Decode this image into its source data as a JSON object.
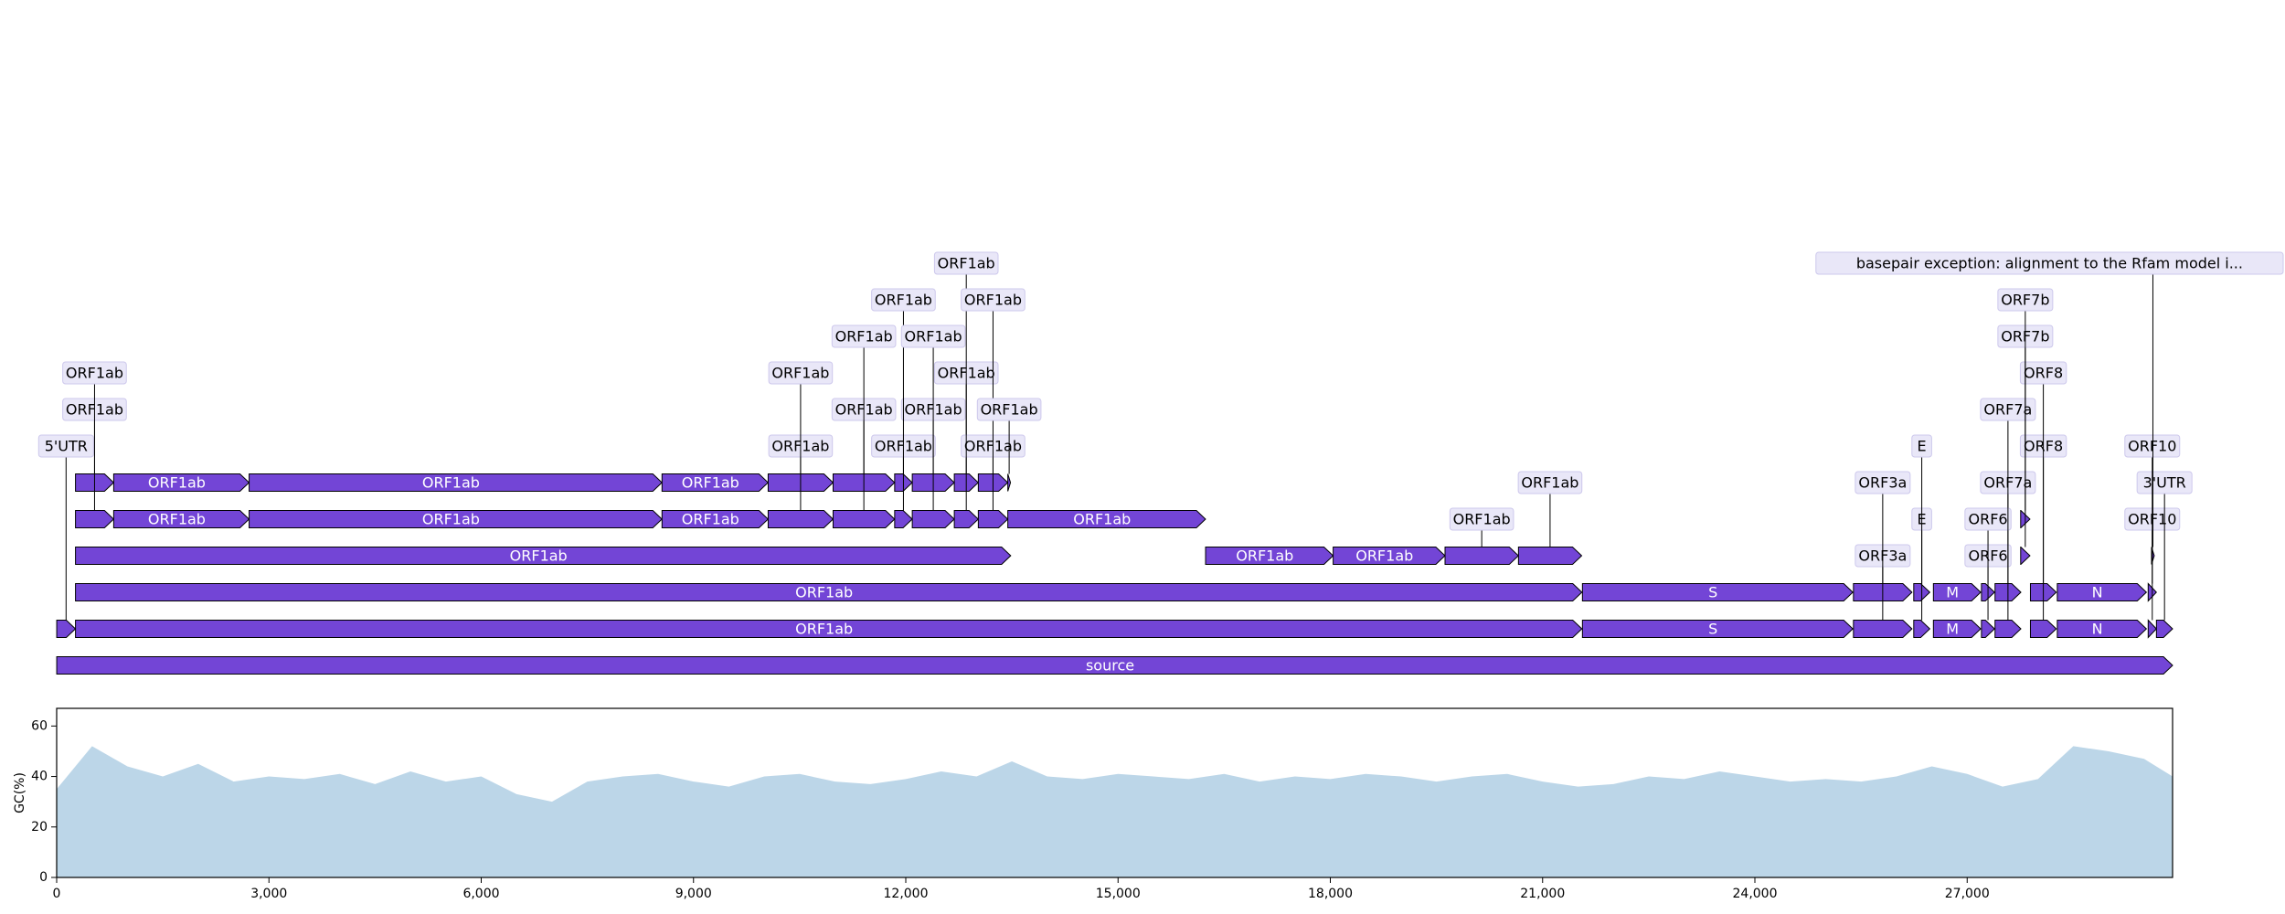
{
  "chart_data": {
    "type": "genome-map",
    "color": "#7345d6",
    "xlim": [
      0,
      29903
    ],
    "xticks": [
      0,
      {
        "value": 3000,
        "label": "3,000"
      },
      {
        "value": 6000,
        "label": "6,000"
      },
      {
        "value": 9000,
        "label": "9,000"
      },
      {
        "value": 12000,
        "label": "12,000"
      },
      {
        "value": 15000,
        "label": "15,000"
      },
      {
        "value": 18000,
        "label": "18,000"
      },
      {
        "value": 21000,
        "label": "21,000"
      },
      {
        "value": 24000,
        "label": "24,000"
      },
      {
        "value": 27000,
        "label": "27,000"
      }
    ],
    "features": [
      {
        "start": 1,
        "end": 29903,
        "label": "source"
      },
      {
        "start": 1,
        "end": 265,
        "label": "5'UTR"
      },
      {
        "start": 266,
        "end": 21555,
        "label": "ORF1ab"
      },
      {
        "start": 21563,
        "end": 25384,
        "label": "S"
      },
      {
        "start": 25393,
        "end": 26220,
        "label": "ORF3a"
      },
      {
        "start": 26245,
        "end": 26472,
        "label": "E"
      },
      {
        "start": 26523,
        "end": 27191,
        "label": "M"
      },
      {
        "start": 27202,
        "end": 27387,
        "label": "ORF6"
      },
      {
        "start": 27394,
        "end": 27759,
        "label": "ORF7a"
      },
      {
        "start": 27894,
        "end": 28259,
        "label": "ORF8"
      },
      {
        "start": 28274,
        "end": 29533,
        "label": "N"
      },
      {
        "start": 29558,
        "end": 29674,
        "label": "ORF10"
      },
      {
        "start": 29675,
        "end": 29903,
        "label": "3'UTR"
      },
      {
        "start": 266,
        "end": 21555,
        "label": "ORF1ab"
      },
      {
        "start": 21563,
        "end": 25384,
        "label": "S"
      },
      {
        "start": 25393,
        "end": 26220,
        "label": "ORF3a"
      },
      {
        "start": 26245,
        "end": 26472,
        "label": "E"
      },
      {
        "start": 26523,
        "end": 27191,
        "label": "M"
      },
      {
        "start": 27202,
        "end": 27387,
        "label": "ORF6"
      },
      {
        "start": 27394,
        "end": 27759,
        "label": "ORF7a"
      },
      {
        "start": 27894,
        "end": 28259,
        "label": "ORF8"
      },
      {
        "start": 28274,
        "end": 29533,
        "label": "N"
      },
      {
        "start": 29558,
        "end": 29674,
        "label": "ORF10"
      },
      {
        "start": 27756,
        "end": 27887,
        "label": "ORF7b"
      },
      {
        "start": 27756,
        "end": 27887,
        "label": "ORF7b"
      },
      {
        "start": 266,
        "end": 13483,
        "label": "ORF1ab"
      },
      {
        "start": 16237,
        "end": 18039,
        "label": "ORF1ab"
      },
      {
        "start": 18040,
        "end": 19620,
        "label": "ORF1ab"
      },
      {
        "start": 19621,
        "end": 20658,
        "label": "ORF1ab"
      },
      {
        "start": 20659,
        "end": 21552,
        "label": "ORF1ab"
      },
      {
        "start": 29606,
        "end": 29644,
        "label": "basepair exception: alignment to the Rfam model i..."
      },
      {
        "start": 266,
        "end": 805,
        "label": "ORF1ab"
      },
      {
        "start": 806,
        "end": 2719,
        "label": "ORF1ab"
      },
      {
        "start": 2720,
        "end": 8554,
        "label": "ORF1ab"
      },
      {
        "start": 8555,
        "end": 10054,
        "label": "ORF1ab"
      },
      {
        "start": 10055,
        "end": 10972,
        "label": "ORF1ab"
      },
      {
        "start": 10973,
        "end": 11842,
        "label": "ORF1ab"
      },
      {
        "start": 11843,
        "end": 12091,
        "label": "ORF1ab"
      },
      {
        "start": 12092,
        "end": 12685,
        "label": "ORF1ab"
      },
      {
        "start": 12686,
        "end": 13024,
        "label": "ORF1ab"
      },
      {
        "start": 13025,
        "end": 13441,
        "label": "ORF1ab"
      },
      {
        "start": 13442,
        "end": 16236,
        "label": "ORF1ab"
      },
      {
        "start": 266,
        "end": 805,
        "label": "ORF1ab"
      },
      {
        "start": 806,
        "end": 2719,
        "label": "ORF1ab"
      },
      {
        "start": 2720,
        "end": 8554,
        "label": "ORF1ab"
      },
      {
        "start": 8555,
        "end": 10054,
        "label": "ORF1ab"
      },
      {
        "start": 10055,
        "end": 10972,
        "label": "ORF1ab"
      },
      {
        "start": 10973,
        "end": 11842,
        "label": "ORF1ab"
      },
      {
        "start": 11843,
        "end": 12091,
        "label": "ORF1ab"
      },
      {
        "start": 12092,
        "end": 12685,
        "label": "ORF1ab"
      },
      {
        "start": 12686,
        "end": 13024,
        "label": "ORF1ab"
      },
      {
        "start": 13025,
        "end": 13441,
        "label": "ORF1ab"
      },
      {
        "start": 13442,
        "end": 13480,
        "label": "ORF1ab"
      }
    ],
    "gc": {
      "ylabel": "GC(%)",
      "color": "#bcd6e8",
      "ylim": [
        0,
        67
      ],
      "yticks": [
        0,
        20,
        40,
        60
      ],
      "x": [
        0,
        500,
        1000,
        1500,
        2000,
        2500,
        3000,
        3500,
        4000,
        4500,
        5000,
        5500,
        6000,
        6500,
        7000,
        7500,
        8000,
        8500,
        9000,
        9500,
        10000,
        10500,
        11000,
        11500,
        12000,
        12500,
        13000,
        13500,
        14000,
        14500,
        15000,
        15500,
        16000,
        16500,
        17000,
        17500,
        18000,
        18500,
        19000,
        19500,
        20000,
        20500,
        21000,
        21500,
        22000,
        22500,
        23000,
        23500,
        24000,
        24500,
        25000,
        25500,
        26000,
        26500,
        27000,
        27500,
        28000,
        28500,
        29000,
        29500,
        29903
      ],
      "values": [
        35,
        52,
        44,
        40,
        45,
        38,
        40,
        39,
        41,
        37,
        42,
        38,
        40,
        33,
        30,
        38,
        40,
        41,
        38,
        36,
        40,
        41,
        38,
        37,
        39,
        42,
        40,
        46,
        40,
        39,
        41,
        40,
        39,
        41,
        38,
        40,
        39,
        41,
        40,
        38,
        40,
        41,
        38,
        36,
        37,
        40,
        39,
        42,
        40,
        38,
        39,
        38,
        40,
        44,
        41,
        36,
        39,
        52,
        50,
        47,
        40
      ]
    }
  }
}
